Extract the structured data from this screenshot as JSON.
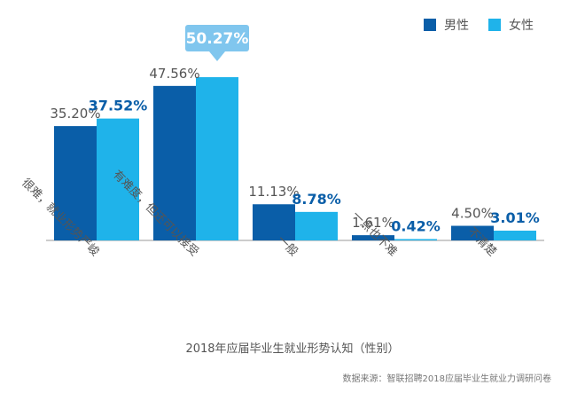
{
  "chart_data": {
    "type": "bar",
    "categories": [
      "很难，就业形势严峻",
      "有难度，但还可以接受",
      "一般",
      "一点也不难",
      "不清楚"
    ],
    "series": [
      {
        "name": "男性",
        "values": [
          35.2,
          47.56,
          11.13,
          1.61,
          4.5
        ],
        "labels": [
          "35.20%",
          "47.56%",
          "11.13%",
          "1.61%",
          "4.50%"
        ]
      },
      {
        "name": "女性",
        "values": [
          37.52,
          50.27,
          8.78,
          0.42,
          3.01
        ],
        "labels": [
          "37.52%",
          "50.27%",
          "8.78%",
          "0.42%",
          "3.01%"
        ]
      }
    ],
    "xlabel": "2018年应届毕业生就业形势认知（性别）",
    "ylim": [
      0,
      60
    ],
    "grid": false,
    "legend": "top-right",
    "highlight": {
      "series": 1,
      "category": 1
    },
    "colors": {
      "male": "#0a5ea8",
      "female": "#1fb3ea",
      "male_label": "#555555",
      "female_label": "#0a5ea8",
      "callout": "#80c6ee",
      "axis": "#999999"
    },
    "source": "数据来源：智联招聘2018应届毕业生就业力调研问卷"
  }
}
